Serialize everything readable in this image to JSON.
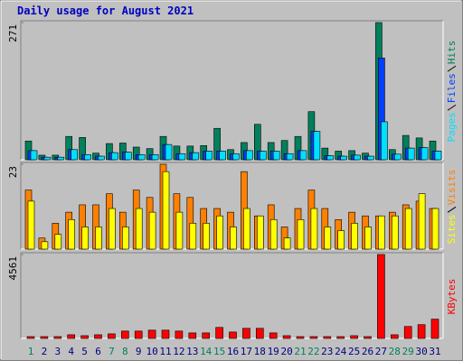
{
  "chart_data": [
    {
      "type": "bar",
      "title": "Daily usage for August 2021",
      "series": [
        {
          "name": "Hits",
          "color": "#00805c",
          "values": [
            37,
            9,
            9,
            46,
            44,
            13,
            32,
            33,
            25,
            22,
            46,
            27,
            27,
            28,
            62,
            20,
            34,
            70,
            34,
            38,
            46,
            95,
            23,
            17,
            18,
            13,
            271,
            20,
            48,
            43,
            37
          ]
        },
        {
          "name": "Files",
          "color": "#0040ff",
          "values": [
            18,
            5,
            5,
            20,
            10,
            7,
            14,
            15,
            10,
            10,
            30,
            12,
            14,
            17,
            17,
            12,
            18,
            17,
            17,
            12,
            18,
            56,
            8,
            7,
            9,
            7,
            201,
            11,
            23,
            24,
            17
          ]
        },
        {
          "name": "Pages",
          "color": "#00e0ff",
          "values": [
            18,
            5,
            5,
            20,
            10,
            7,
            14,
            15,
            10,
            10,
            30,
            12,
            14,
            17,
            17,
            12,
            18,
            17,
            17,
            12,
            18,
            56,
            8,
            7,
            9,
            7,
            75,
            11,
            23,
            24,
            17
          ]
        }
      ],
      "ylim": [
        0,
        271
      ],
      "yticks": [
        271
      ]
    },
    {
      "type": "bar",
      "series": [
        {
          "name": "Visits",
          "color": "#ff8000",
          "values": [
            16,
            3,
            7,
            10,
            12,
            12,
            15,
            10,
            16,
            14,
            23,
            15,
            14,
            11,
            11,
            10,
            21,
            9,
            12,
            6,
            11,
            16,
            11,
            8,
            10,
            9,
            9,
            10,
            12,
            13,
            11
          ]
        },
        {
          "name": "Sites",
          "color": "#ffff00",
          "values": [
            13,
            2,
            4,
            8,
            6,
            6,
            11,
            6,
            11,
            10,
            21,
            10,
            7,
            7,
            9,
            6,
            11,
            9,
            8,
            3,
            8,
            11,
            6,
            5,
            7,
            6,
            9,
            9,
            11,
            15,
            11
          ]
        }
      ],
      "ylim": [
        0,
        23
      ],
      "yticks": [
        23
      ]
    },
    {
      "type": "bar",
      "categories": [
        "1",
        "2",
        "3",
        "4",
        "5",
        "6",
        "7",
        "8",
        "9",
        "10",
        "11",
        "12",
        "13",
        "14",
        "15",
        "16",
        "17",
        "18",
        "19",
        "20",
        "21",
        "22",
        "23",
        "24",
        "25",
        "26",
        "27",
        "28",
        "29",
        "30",
        "31"
      ],
      "label_colors": [
        "#00805c",
        "#000080",
        "#000080",
        "#000080",
        "#000080",
        "#000080",
        "#00805c",
        "#00805c",
        "#000080",
        "#000080",
        "#000080",
        "#000080",
        "#000080",
        "#00805c",
        "#00805c",
        "#000080",
        "#000080",
        "#000080",
        "#000080",
        "#000080",
        "#00805c",
        "#00805c",
        "#000080",
        "#000080",
        "#000080",
        "#000080",
        "#000080",
        "#00805c",
        "#00805c",
        "#000080",
        "#000080"
      ],
      "series": [
        {
          "name": "KBytes",
          "color": "#ff0000",
          "values": [
            100,
            100,
            100,
            200,
            150,
            200,
            250,
            400,
            400,
            450,
            450,
            400,
            300,
            300,
            600,
            350,
            550,
            550,
            300,
            150,
            100,
            100,
            100,
            100,
            150,
            100,
            4561,
            200,
            650,
            750,
            1050
          ]
        }
      ],
      "ylim": [
        0,
        4561
      ],
      "yticks": [
        4561
      ]
    }
  ]
}
